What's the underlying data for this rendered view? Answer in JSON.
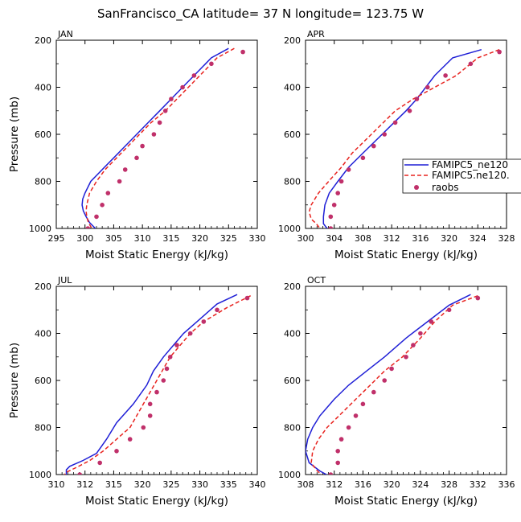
{
  "title": "SanFrancisco_CA  latitude= 37 N longitude= 123.75 W",
  "legend": {
    "entries": [
      {
        "label": "FAMIPC5_ne120",
        "style": "solid",
        "color": "#1f1fd6"
      },
      {
        "label": "FAMIPC5.ne120.",
        "style": "dashed",
        "color": "#e8231f"
      },
      {
        "label": "raobs",
        "style": "dot",
        "color": "#c0306a"
      }
    ]
  },
  "chart_data": [
    {
      "type": "line",
      "panel": "JAN",
      "xlabel": "Moist Static Energy (kJ/kg)",
      "ylabel": "Pressure (mb)",
      "xlim": [
        295,
        330
      ],
      "xticks": [
        "295",
        "300",
        "305",
        "310",
        "315",
        "320",
        "325",
        "330"
      ],
      "ylim": [
        1000,
        200
      ],
      "yticks": [
        "200",
        "400",
        "600",
        "800",
        "1000"
      ],
      "series": [
        {
          "name": "FAMIPC5_ne120",
          "points": [
            [
              325,
              235
            ],
            [
              322,
              275
            ],
            [
              319,
              350
            ],
            [
              317,
              400
            ],
            [
              315,
              450
            ],
            [
              313,
              500
            ],
            [
              311,
              550
            ],
            [
              309,
              600
            ],
            [
              307,
              650
            ],
            [
              305,
              700
            ],
            [
              303,
              750
            ],
            [
              301,
              800
            ],
            [
              300,
              850
            ],
            [
              299.6,
              875
            ],
            [
              299.5,
              900
            ],
            [
              299.7,
              925
            ],
            [
              300.2,
              950
            ],
            [
              300.8,
              975
            ],
            [
              301.8,
              1000
            ]
          ]
        },
        {
          "name": "FAMIPC5.ne120.",
          "points": [
            [
              326,
              235
            ],
            [
              323,
              275
            ],
            [
              320,
              350
            ],
            [
              318,
              400
            ],
            [
              316,
              450
            ],
            [
              314,
              500
            ],
            [
              311.5,
              550
            ],
            [
              309.5,
              600
            ],
            [
              307.5,
              650
            ],
            [
              305.5,
              700
            ],
            [
              303.5,
              750
            ],
            [
              302,
              800
            ],
            [
              300.8,
              850
            ],
            [
              300.3,
              900
            ],
            [
              300.2,
              925
            ],
            [
              300.3,
              950
            ],
            [
              300.6,
              975
            ],
            [
              301.2,
              1000
            ]
          ]
        },
        {
          "name": "raobs",
          "points": [
            [
              327.5,
              250
            ],
            [
              322,
              300
            ],
            [
              319,
              350
            ],
            [
              317,
              400
            ],
            [
              315,
              450
            ],
            [
              314,
              500
            ],
            [
              313,
              550
            ],
            [
              312,
              600
            ],
            [
              310,
              650
            ],
            [
              309,
              700
            ],
            [
              307,
              750
            ],
            [
              306,
              800
            ],
            [
              304,
              850
            ],
            [
              303,
              900
            ],
            [
              302,
              950
            ],
            [
              300.5,
              1000
            ]
          ]
        }
      ]
    },
    {
      "type": "line",
      "panel": "APR",
      "xlabel": "Moist Static Energy (kJ/kg)",
      "ylabel": "",
      "xlim": [
        300,
        328
      ],
      "xticks": [
        "300",
        "304",
        "308",
        "312",
        "316",
        "320",
        "324",
        "328"
      ],
      "ylim": [
        1000,
        200
      ],
      "yticks": [
        "200",
        "400",
        "600",
        "800",
        "1000"
      ],
      "series": [
        {
          "name": "FAMIPC5_ne120",
          "points": [
            [
              324.5,
              240
            ],
            [
              320.5,
              275
            ],
            [
              318,
              350
            ],
            [
              315.5,
              450
            ],
            [
              314,
              500
            ],
            [
              312,
              560
            ],
            [
              310,
              620
            ],
            [
              308,
              680
            ],
            [
              306,
              740
            ],
            [
              304.5,
              800
            ],
            [
              303.3,
              850
            ],
            [
              302.7,
              900
            ],
            [
              302.5,
              950
            ],
            [
              302.5,
              980
            ],
            [
              303,
              1000
            ]
          ]
        },
        {
          "name": "FAMIPC5.ne120.",
          "points": [
            [
              327,
              240
            ],
            [
              324,
              275
            ],
            [
              321,
              350
            ],
            [
              318,
              400
            ],
            [
              315,
              450
            ],
            [
              312.5,
              500
            ],
            [
              310.5,
              560
            ],
            [
              308.5,
              620
            ],
            [
              306.5,
              680
            ],
            [
              305,
              740
            ],
            [
              303.5,
              790
            ],
            [
              301.8,
              850
            ],
            [
              300.8,
              900
            ],
            [
              300.5,
              930
            ],
            [
              300.8,
              960
            ],
            [
              301.5,
              980
            ],
            [
              302,
              1000
            ]
          ]
        },
        {
          "name": "raobs",
          "points": [
            [
              327,
              250
            ],
            [
              323,
              300
            ],
            [
              319.5,
              350
            ],
            [
              317,
              400
            ],
            [
              315.5,
              450
            ],
            [
              314.5,
              500
            ],
            [
              312.5,
              550
            ],
            [
              311,
              600
            ],
            [
              309.5,
              650
            ],
            [
              308,
              700
            ],
            [
              306,
              750
            ],
            [
              305,
              800
            ],
            [
              304.5,
              850
            ],
            [
              304,
              900
            ],
            [
              303.5,
              950
            ],
            [
              303.5,
              1000
            ]
          ]
        }
      ]
    },
    {
      "type": "line",
      "panel": "JUL",
      "xlabel": "Moist Static Energy (kJ/kg)",
      "ylabel": "Pressure (mb)",
      "xlim": [
        310,
        340
      ],
      "xticks": [
        "310",
        "312",
        "315",
        "320",
        "325",
        "330",
        "335",
        "340"
      ],
      "ylim": [
        1000,
        200
      ],
      "yticks": [
        "200",
        "400",
        "600",
        "800",
        "1000"
      ],
      "series": [
        {
          "name": "FAMIPC5_ne120",
          "points": [
            [
              337,
              235
            ],
            [
              334,
              275
            ],
            [
              331,
              350
            ],
            [
              329,
              400
            ],
            [
              327.5,
              450
            ],
            [
              326,
              500
            ],
            [
              324.5,
              560
            ],
            [
              323.5,
              620
            ],
            [
              321.5,
              700
            ],
            [
              319,
              780
            ],
            [
              317.5,
              850
            ],
            [
              316,
              910
            ],
            [
              314,
              940
            ],
            [
              312,
              965
            ],
            [
              311.5,
              980
            ],
            [
              311.5,
              1000
            ]
          ]
        },
        {
          "name": "FAMIPC5.ne120.",
          "points": [
            [
              339,
              240
            ],
            [
              335.5,
              290
            ],
            [
              332,
              350
            ],
            [
              330,
              400
            ],
            [
              328.5,
              450
            ],
            [
              327,
              500
            ],
            [
              326,
              550
            ],
            [
              325,
              600
            ],
            [
              324,
              650
            ],
            [
              323,
              700
            ],
            [
              322,
              750
            ],
            [
              321,
              800
            ],
            [
              319,
              850
            ],
            [
              317,
              900
            ],
            [
              315,
              940
            ],
            [
              313,
              970
            ],
            [
              311.5,
              990
            ],
            [
              311,
              1010
            ]
          ]
        },
        {
          "name": "raobs",
          "points": [
            [
              338.5,
              250
            ],
            [
              334,
              300
            ],
            [
              332,
              350
            ],
            [
              330,
              400
            ],
            [
              328,
              450
            ],
            [
              327,
              500
            ],
            [
              326.5,
              550
            ],
            [
              326,
              600
            ],
            [
              325,
              650
            ],
            [
              324,
              700
            ],
            [
              324,
              750
            ],
            [
              323,
              800
            ],
            [
              321,
              850
            ],
            [
              319,
              900
            ],
            [
              316.5,
              950
            ],
            [
              313.5,
              1000
            ]
          ]
        }
      ]
    },
    {
      "type": "line",
      "panel": "OCT",
      "xlabel": "Moist Static Energy (kJ/kg)",
      "ylabel": "",
      "xlim": [
        308,
        336
      ],
      "xticks": [
        "308",
        "312",
        "316",
        "320",
        "324",
        "328",
        "332",
        "336"
      ],
      "ylim": [
        1000,
        200
      ],
      "yticks": [
        "200",
        "400",
        "600",
        "800",
        "1000"
      ],
      "series": [
        {
          "name": "FAMIPC5_ne120",
          "points": [
            [
              331,
              235
            ],
            [
              328,
              280
            ],
            [
              325,
              350
            ],
            [
              322,
              420
            ],
            [
              319,
              500
            ],
            [
              316.5,
              560
            ],
            [
              314,
              620
            ],
            [
              312,
              680
            ],
            [
              310,
              750
            ],
            [
              309,
              800
            ],
            [
              308.3,
              850
            ],
            [
              308,
              900
            ],
            [
              308.5,
              950
            ],
            [
              310,
              985
            ],
            [
              311.5,
              1010
            ]
          ]
        },
        {
          "name": "FAMIPC5.ne120.",
          "points": [
            [
              332,
              240
            ],
            [
              328.5,
              280
            ],
            [
              326,
              350
            ],
            [
              324,
              420
            ],
            [
              321.5,
              500
            ],
            [
              319,
              560
            ],
            [
              317,
              620
            ],
            [
              315,
              680
            ],
            [
              313,
              740
            ],
            [
              311,
              800
            ],
            [
              309.8,
              850
            ],
            [
              309,
              900
            ],
            [
              308.8,
              950
            ],
            [
              309.5,
              980
            ],
            [
              310.5,
              1010
            ]
          ]
        },
        {
          "name": "raobs",
          "points": [
            [
              332,
              250
            ],
            [
              328,
              300
            ],
            [
              325.5,
              350
            ],
            [
              324,
              400
            ],
            [
              323,
              450
            ],
            [
              322,
              500
            ],
            [
              320,
              550
            ],
            [
              319,
              600
            ],
            [
              317.5,
              650
            ],
            [
              316,
              700
            ],
            [
              315,
              750
            ],
            [
              314,
              800
            ],
            [
              313,
              850
            ],
            [
              312.5,
              900
            ],
            [
              312.5,
              950
            ],
            [
              311.5,
              1000
            ]
          ]
        }
      ]
    }
  ]
}
